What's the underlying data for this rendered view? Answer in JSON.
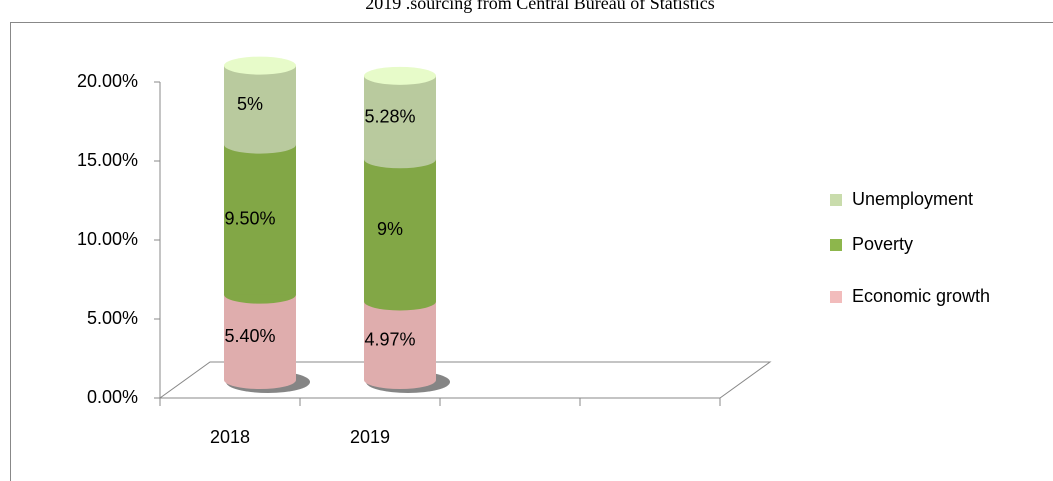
{
  "chart_data": {
    "type": "bar3d_stacked",
    "title": "2019 .sourcing from Central Bureau of Statistics",
    "categories": [
      "2018",
      "2019",
      null,
      null
    ],
    "series": [
      {
        "name": "Economic growth",
        "color": "#f2bcbc",
        "values": [
          5.4,
          4.97,
          null,
          null
        ],
        "value_labels": [
          "5.40%",
          "4.97%",
          null,
          null
        ]
      },
      {
        "name": "Poverty",
        "color": "#8db64c",
        "values": [
          9.5,
          9,
          null,
          null
        ],
        "value_labels": [
          "9.50%",
          "9%",
          null,
          null
        ]
      },
      {
        "name": "Unemployment",
        "color": "#c9dcac",
        "values": [
          5,
          5.28,
          null,
          null
        ],
        "value_labels": [
          "5%",
          "5.28%",
          null,
          null
        ]
      }
    ],
    "ylim": [
      0,
      20
    ],
    "yticks": [
      {
        "value": 0,
        "label": "0.00%"
      },
      {
        "value": 5,
        "label": "5.00%"
      },
      {
        "value": 10,
        "label": "10.00%"
      },
      {
        "value": 15,
        "label": "15.00%"
      },
      {
        "value": 20,
        "label": "20.00%"
      }
    ],
    "legend": "right"
  }
}
